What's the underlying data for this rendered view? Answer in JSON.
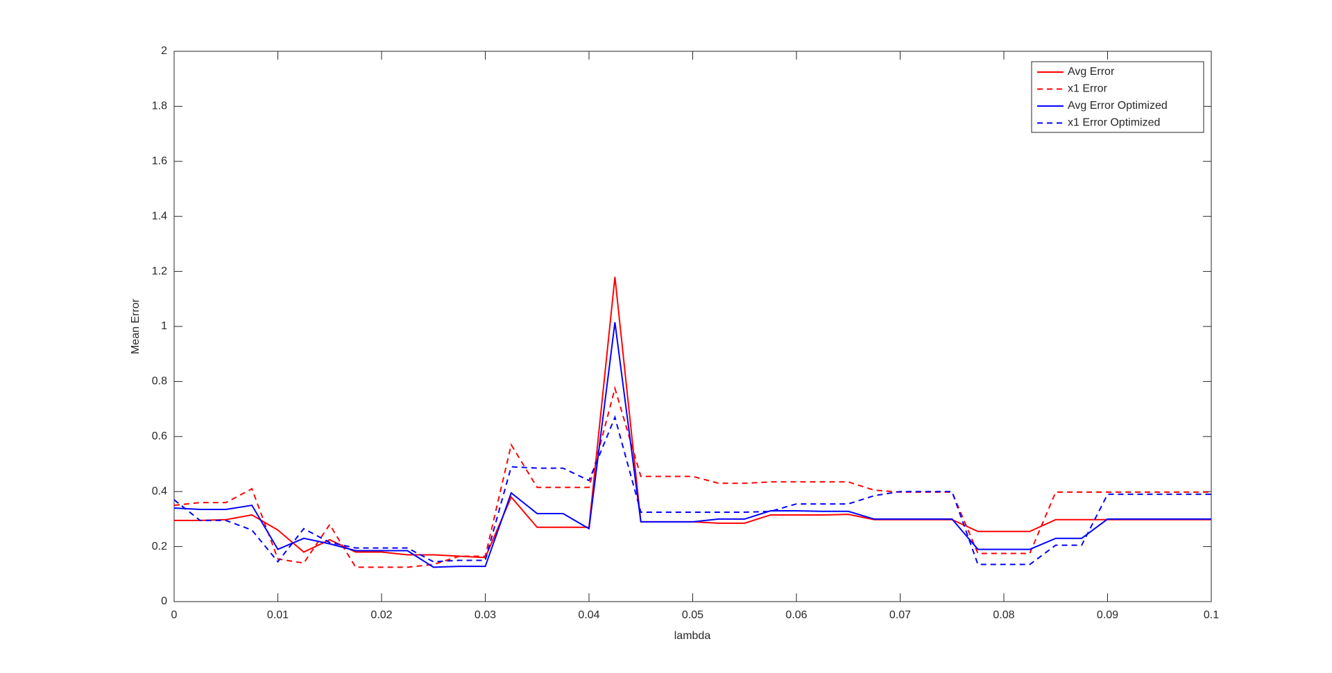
{
  "chart_data": {
    "type": "line",
    "x_label": "lambda",
    "y_label": "Mean Error",
    "x": [
      0,
      0.0025,
      0.005,
      0.0075,
      0.01,
      0.0125,
      0.015,
      0.0175,
      0.02,
      0.0225,
      0.025,
      0.0275,
      0.03,
      0.0325,
      0.035,
      0.0375,
      0.04,
      0.0425,
      0.045,
      0.0475,
      0.05,
      0.0525,
      0.055,
      0.0575,
      0.06,
      0.0625,
      0.065,
      0.0675,
      0.07,
      0.0725,
      0.075,
      0.0775,
      0.08,
      0.0825,
      0.085,
      0.0875,
      0.09,
      0.0925,
      0.095,
      0.0975,
      0.1
    ],
    "series": [
      {
        "name": "Avg Error",
        "color": "#ff0000",
        "dash": false,
        "values": [
          0.295,
          0.295,
          0.298,
          0.315,
          0.26,
          0.18,
          0.225,
          0.18,
          0.18,
          0.17,
          0.17,
          0.165,
          0.16,
          0.38,
          0.27,
          0.27,
          0.27,
          1.18,
          0.29,
          0.29,
          0.29,
          0.285,
          0.285,
          0.315,
          0.315,
          0.315,
          0.317,
          0.298,
          0.298,
          0.298,
          0.298,
          0.255,
          0.255,
          0.255,
          0.298,
          0.298,
          0.298,
          0.298,
          0.298,
          0.298,
          0.298
        ]
      },
      {
        "name": "x1 Error",
        "color": "#ff0000",
        "dash": true,
        "values": [
          0.35,
          0.36,
          0.36,
          0.41,
          0.155,
          0.14,
          0.28,
          0.125,
          0.125,
          0.125,
          0.135,
          0.165,
          0.165,
          0.57,
          0.415,
          0.415,
          0.415,
          0.775,
          0.455,
          0.455,
          0.455,
          0.43,
          0.43,
          0.435,
          0.435,
          0.435,
          0.435,
          0.405,
          0.398,
          0.398,
          0.398,
          0.175,
          0.175,
          0.175,
          0.398,
          0.398,
          0.398,
          0.398,
          0.398,
          0.398,
          0.398
        ]
      },
      {
        "name": "Avg Error Optimized",
        "color": "#0000ff",
        "dash": false,
        "values": [
          0.34,
          0.335,
          0.335,
          0.35,
          0.19,
          0.23,
          0.21,
          0.185,
          0.185,
          0.185,
          0.125,
          0.128,
          0.128,
          0.395,
          0.32,
          0.32,
          0.265,
          1.015,
          0.29,
          0.29,
          0.29,
          0.3,
          0.3,
          0.33,
          0.33,
          0.328,
          0.328,
          0.3,
          0.3,
          0.3,
          0.3,
          0.19,
          0.19,
          0.19,
          0.23,
          0.23,
          0.3,
          0.3,
          0.3,
          0.3,
          0.3
        ]
      },
      {
        "name": "x1 Error Optimized",
        "color": "#0000ff",
        "dash": true,
        "values": [
          0.37,
          0.295,
          0.295,
          0.26,
          0.145,
          0.265,
          0.215,
          0.195,
          0.195,
          0.195,
          0.145,
          0.15,
          0.15,
          0.49,
          0.485,
          0.485,
          0.44,
          0.67,
          0.325,
          0.325,
          0.325,
          0.325,
          0.325,
          0.328,
          0.355,
          0.355,
          0.355,
          0.385,
          0.4,
          0.4,
          0.4,
          0.135,
          0.135,
          0.135,
          0.205,
          0.205,
          0.39,
          0.39,
          0.39,
          0.39,
          0.39
        ]
      }
    ],
    "xlim": [
      0,
      0.1
    ],
    "xticks": [
      0,
      0.01,
      0.02,
      0.03,
      0.04,
      0.05,
      0.06,
      0.07,
      0.08,
      0.09,
      0.1
    ],
    "ylim": [
      0,
      2
    ],
    "yticks": [
      0,
      0.2,
      0.4,
      0.6,
      0.8,
      1,
      1.2,
      1.4,
      1.6,
      1.8,
      2
    ],
    "legend": "upper-right"
  }
}
